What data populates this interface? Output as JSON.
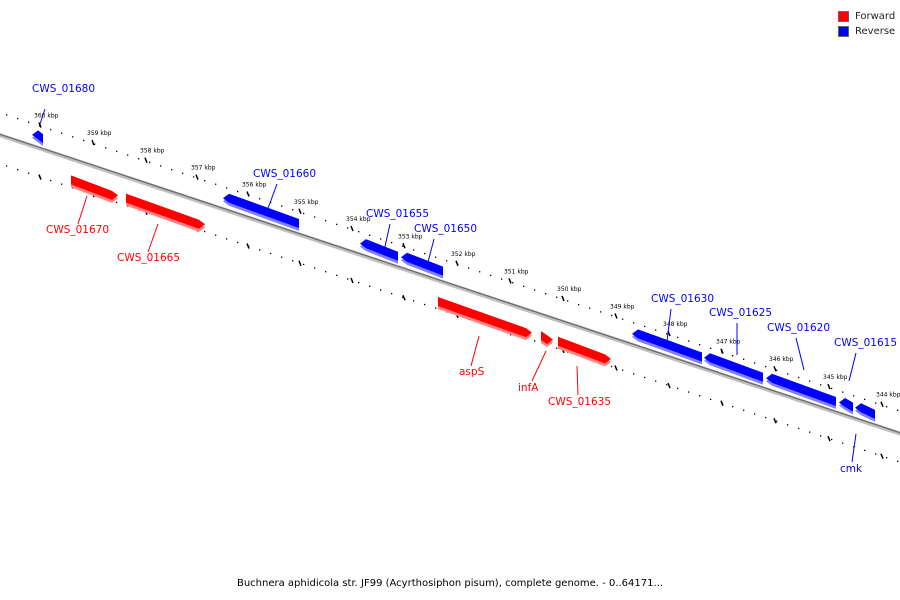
{
  "caption": "Buchnera aphidicola str. JF99 (Acyrthosiphon pisum), complete genome. - 0..64171...",
  "legend": [
    {
      "label": "Forward",
      "color": "#ff0000"
    },
    {
      "label": "Reverse",
      "color": "#0000ff"
    }
  ],
  "colors": {
    "forward": "#ff0000",
    "reverse": "#0000ff",
    "backbone": "#808080"
  },
  "ticks": [
    {
      "kbp": 360,
      "label": "360 kbp"
    },
    {
      "kbp": 359,
      "label": "359 kbp"
    },
    {
      "kbp": 358,
      "label": "358 kbp"
    },
    {
      "kbp": 357,
      "label": "357 kbp"
    },
    {
      "kbp": 356,
      "label": "356 kbp"
    },
    {
      "kbp": 355,
      "label": "355 kbp"
    },
    {
      "kbp": 354,
      "label": "354 kbp"
    },
    {
      "kbp": 353,
      "label": "353 kbp"
    },
    {
      "kbp": 352,
      "label": "352 kbp"
    },
    {
      "kbp": 351,
      "label": "351 kbp"
    },
    {
      "kbp": 350,
      "label": "350 kbp"
    },
    {
      "kbp": 349,
      "label": "349 kbp"
    },
    {
      "kbp": 348,
      "label": "348 kbp"
    },
    {
      "kbp": 347,
      "label": "347 kbp"
    },
    {
      "kbp": 346,
      "label": "346 kbp"
    },
    {
      "kbp": 345,
      "label": "345 kbp"
    },
    {
      "kbp": 344,
      "label": "344 kbp"
    }
  ],
  "genes": [
    {
      "name": "CWS_01680",
      "strand": "reverse"
    },
    {
      "name": "CWS_01670",
      "strand": "forward"
    },
    {
      "name": "CWS_01665",
      "strand": "forward"
    },
    {
      "name": "CWS_01660",
      "strand": "reverse"
    },
    {
      "name": "CWS_01655",
      "strand": "reverse"
    },
    {
      "name": "CWS_01650",
      "strand": "reverse"
    },
    {
      "name": "aspS",
      "strand": "forward"
    },
    {
      "name": "infA",
      "strand": "forward"
    },
    {
      "name": "CWS_01635",
      "strand": "forward"
    },
    {
      "name": "CWS_01630",
      "strand": "reverse"
    },
    {
      "name": "CWS_01625",
      "strand": "reverse"
    },
    {
      "name": "CWS_01620",
      "strand": "reverse"
    },
    {
      "name": "CWS_01615",
      "strand": "reverse"
    },
    {
      "name": "cmk",
      "strand": "reverse"
    }
  ]
}
